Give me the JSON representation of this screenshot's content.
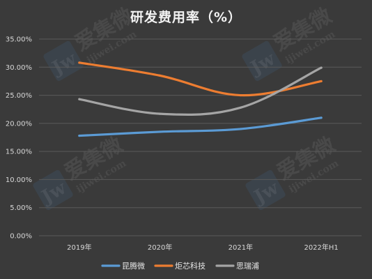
{
  "chart_data": {
    "type": "line",
    "title": "研发费用率（%）",
    "categories": [
      "2019年",
      "2020年",
      "2021年",
      "2022年H1"
    ],
    "y_ticks": [
      "0.00%",
      "5.00%",
      "10.00%",
      "15.00%",
      "20.00%",
      "25.00%",
      "30.00%",
      "35.00%"
    ],
    "ylim": [
      0,
      35
    ],
    "grid": true,
    "legend_position": "bottom",
    "series": [
      {
        "name": "昆腾微",
        "color": "#5b9bd5",
        "values": [
          17.8,
          18.5,
          19.0,
          21.0
        ]
      },
      {
        "name": "炬芯科技",
        "color": "#ed7d31",
        "values": [
          30.8,
          28.5,
          25.0,
          27.5
        ]
      },
      {
        "name": "思瑞浦",
        "color": "#a5a5a5",
        "values": [
          24.3,
          21.7,
          22.8,
          29.9
        ]
      }
    ]
  },
  "watermark": {
    "logo_text": "Jw",
    "brand_text": "爱集微",
    "url_text": "ijiwei.com"
  }
}
